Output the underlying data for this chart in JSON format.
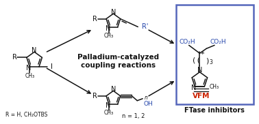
{
  "fig_width": 3.78,
  "fig_height": 1.82,
  "dpi": 100,
  "bg_color": "#ffffff",
  "box_color": "#5566bb",
  "blue_color": "#2244aa",
  "red_color": "#cc2200",
  "title_text": "Palladium-catalyzed\ncoupling reactions",
  "ftase_label": "FTase inhibitors",
  "vfm_label": "VFM",
  "r_label": "R = H, CH₂OTBS",
  "n_label": "n = 1, 2"
}
